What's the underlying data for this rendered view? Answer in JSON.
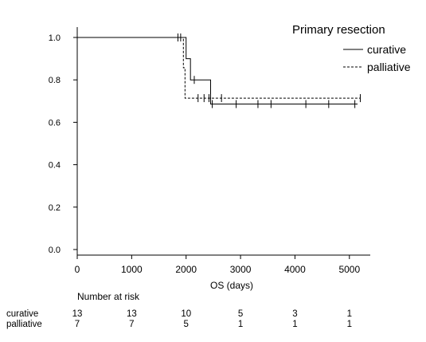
{
  "chart_data": {
    "type": "line",
    "subtype": "kaplan-meier",
    "xlabel": "OS (days)",
    "ylabel": "",
    "xlim": [
      0,
      5350
    ],
    "ylim": [
      -0.02,
      1.02
    ],
    "x_ticks": [
      0,
      1000,
      2000,
      3000,
      4000,
      5000
    ],
    "x_tick_labels": [
      "0",
      "1000",
      "2000",
      "3000",
      "4000",
      "5000"
    ],
    "y_ticks": [
      0.0,
      0.2,
      0.4,
      0.6,
      0.8,
      1.0
    ],
    "y_tick_labels": [
      "0.0",
      "0.2",
      "0.4",
      "0.6",
      "0.8",
      "1.0"
    ],
    "grid": false,
    "legend": {
      "title": "Primary resection",
      "placement": "top-right",
      "entries": [
        {
          "label": "curative",
          "style": "solid"
        },
        {
          "label": "palliative",
          "style": "dashed"
        }
      ]
    },
    "series": [
      {
        "name": "curative",
        "style": "solid",
        "color": "#000000",
        "steps": [
          {
            "x": 0,
            "y": 1.0
          },
          {
            "x": 2000,
            "y": 0.9
          },
          {
            "x": 2080,
            "y": 0.8
          },
          {
            "x": 2450,
            "y": 0.686
          }
        ],
        "end_x": 5150,
        "censored": [
          1850,
          1900,
          2150,
          2480,
          2920,
          3320,
          3560,
          4200,
          4620,
          5100
        ]
      },
      {
        "name": "palliative",
        "style": "dashed",
        "color": "#000000",
        "steps": [
          {
            "x": 0,
            "y": 1.0
          },
          {
            "x": 1950,
            "y": 0.857
          },
          {
            "x": 1980,
            "y": 0.714
          }
        ],
        "end_x": 5200,
        "censored": [
          2220,
          2330,
          2420,
          2650,
          5200
        ]
      }
    ],
    "risk_table": {
      "header": "Number at risk",
      "times": [
        0,
        1000,
        2000,
        3000,
        4000,
        5000
      ],
      "rows": [
        {
          "label": "curative",
          "values": [
            "13",
            "13",
            "10",
            "5",
            "3",
            "1"
          ]
        },
        {
          "label": "palliative",
          "values": [
            "7",
            "7",
            "5",
            "1",
            "1",
            "1"
          ]
        }
      ]
    }
  }
}
